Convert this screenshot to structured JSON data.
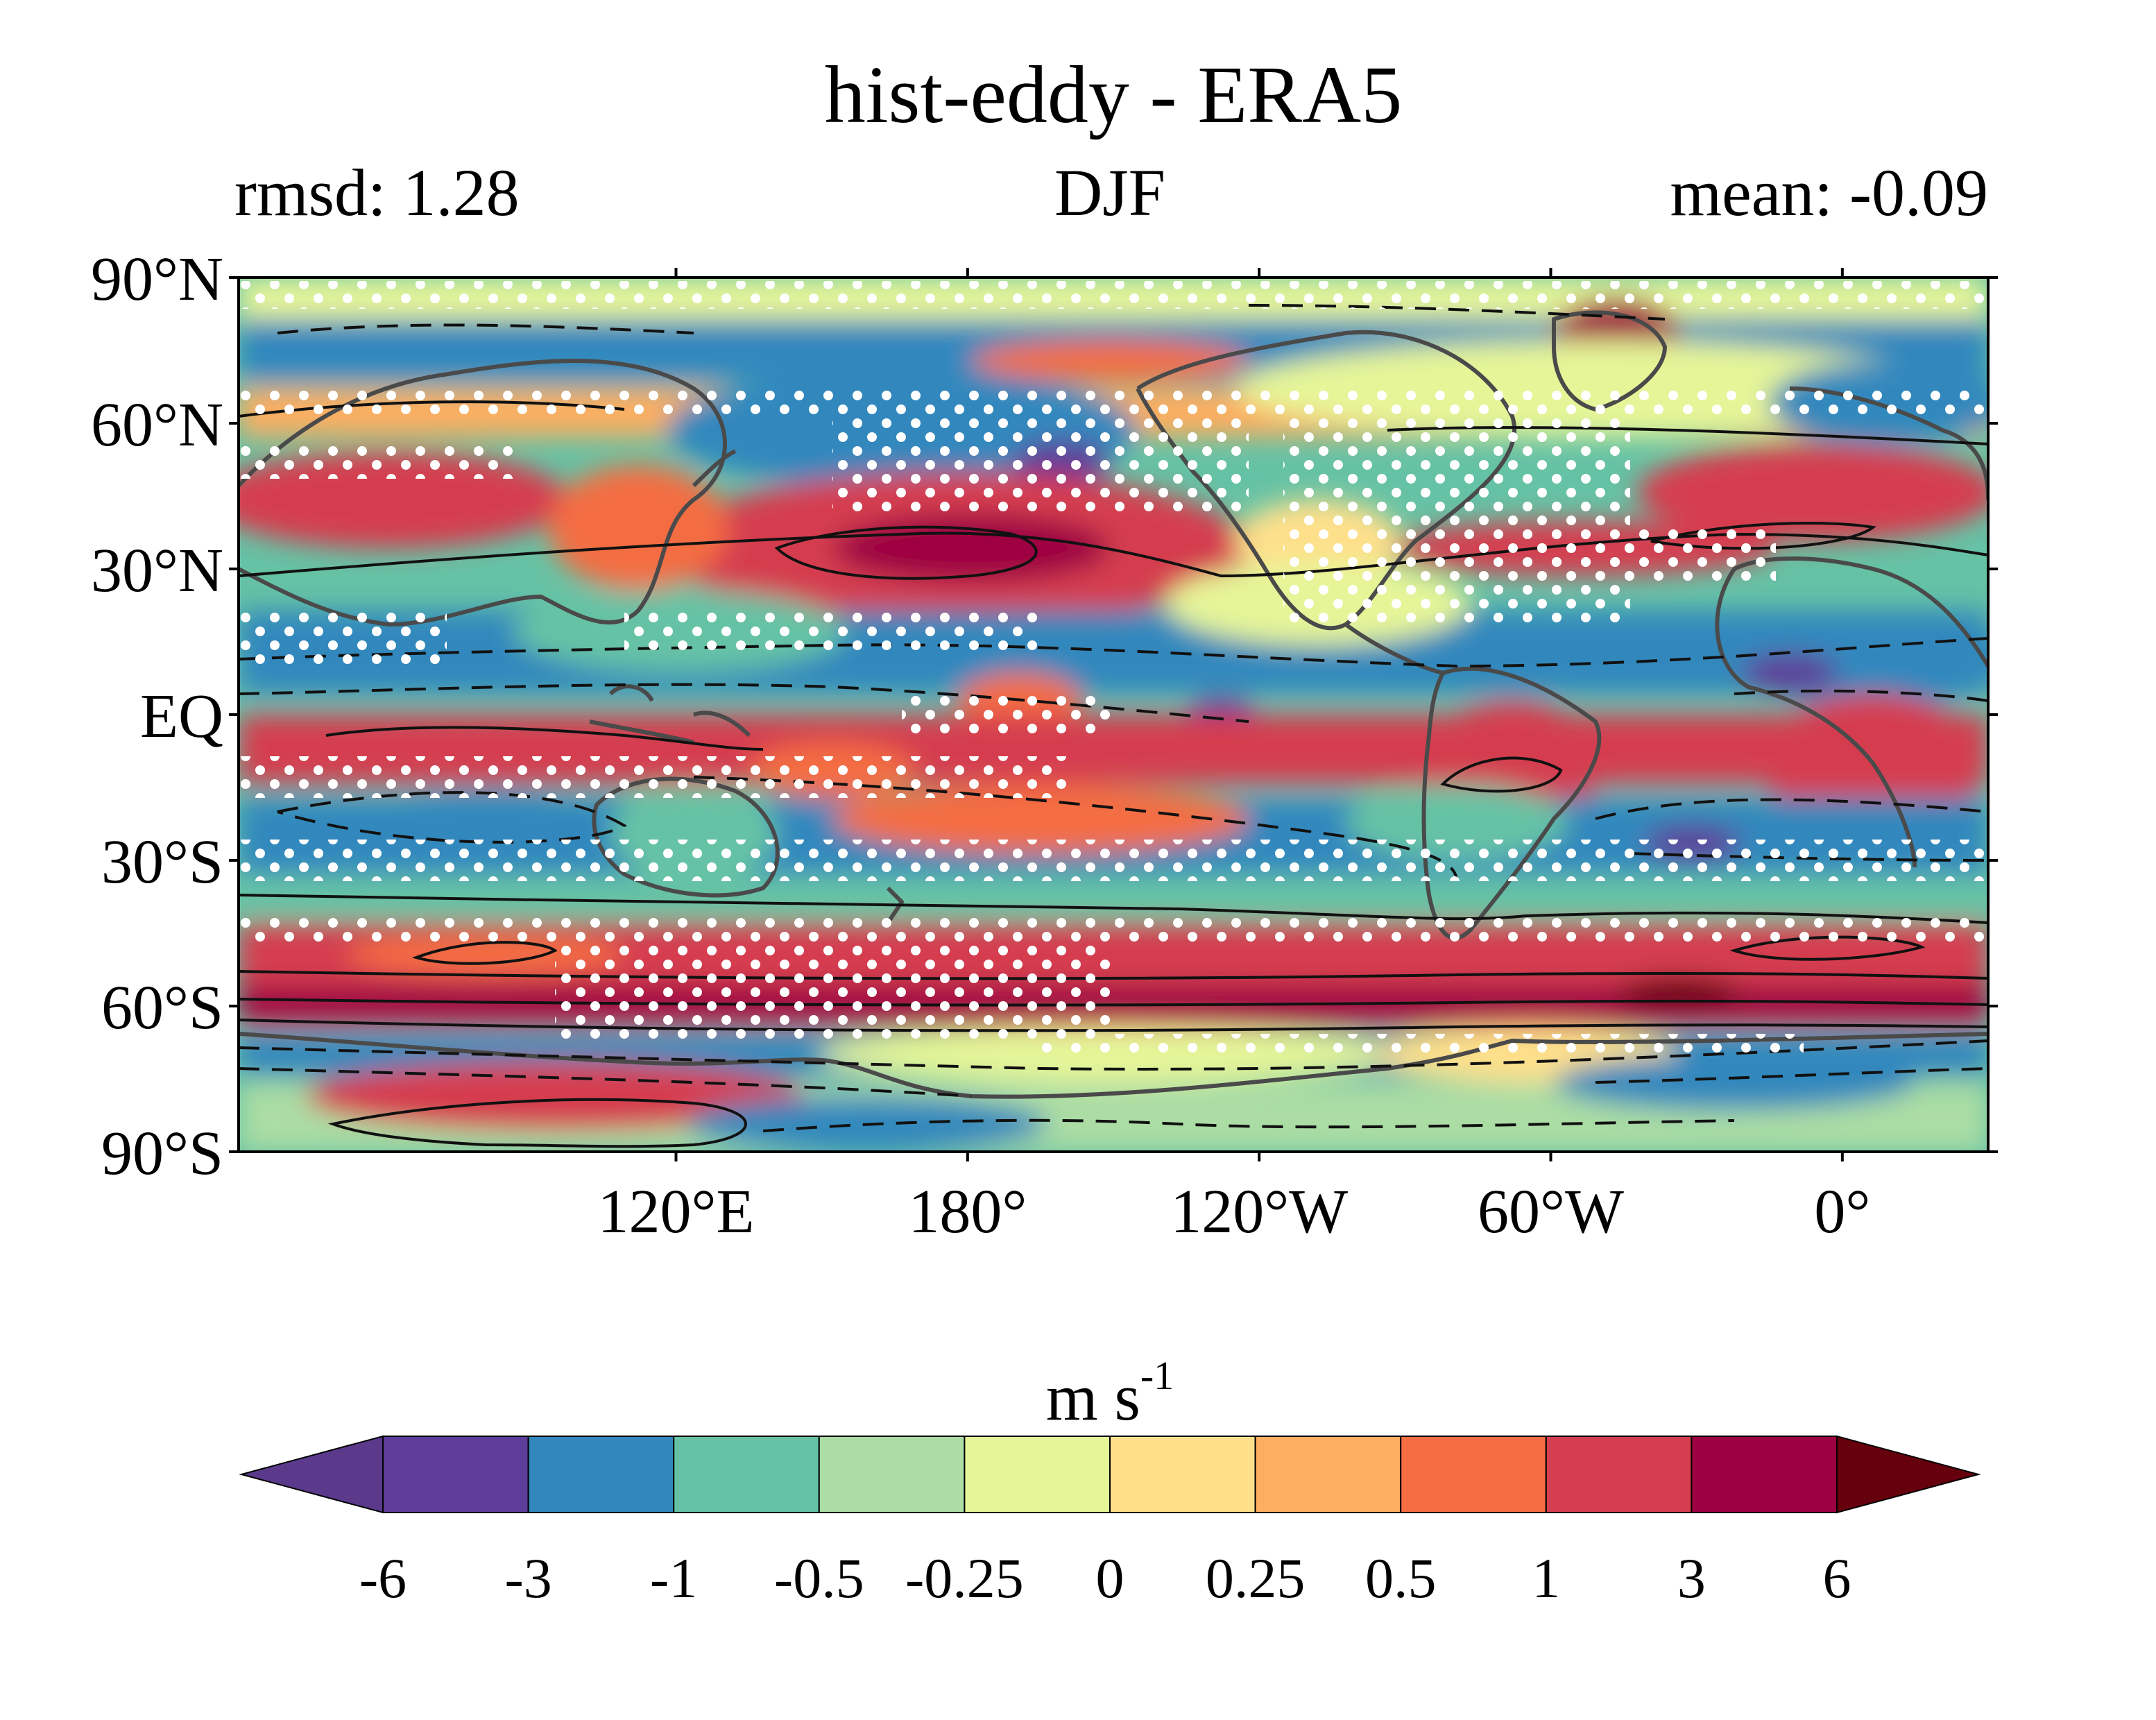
{
  "title": "hist-eddy - ERA5",
  "stats": {
    "left": "rmsd: 1.28",
    "center": "DJF",
    "right": "mean: -0.09"
  },
  "map": {
    "lat_ticks": [
      "90°N",
      "60°N",
      "30°N",
      "EQ",
      "30°S",
      "60°S",
      "90°S"
    ],
    "lon_ticks": [
      "120°E",
      "180°",
      "120°W",
      "60°W",
      "0°"
    ],
    "lon_center": "150°E",
    "stippling": "white dots",
    "overlay": "black contours (solid positive, dashed negative) and dark gray coastlines"
  },
  "colorbar": {
    "unit_main": "m s",
    "unit_sup": "-1",
    "tick_labels": [
      "-6",
      "-3",
      "-1",
      "-0.5",
      "-0.25",
      "0",
      "0.25",
      "0.5",
      "1",
      "3",
      "6"
    ],
    "colors": [
      "#5e3c99",
      "#3288bd",
      "#66c2a5",
      "#abdda4",
      "#e6f598",
      "#fee08b",
      "#fdae61",
      "#f46d43",
      "#d53e4f",
      "#9e0142"
    ],
    "under_color": "#5b3a8c",
    "over_color": "#67000d",
    "extend": "both"
  },
  "palette": {
    "coast": "#4a4a4a",
    "contour": "#111111",
    "stipple": "#ffffff"
  }
}
